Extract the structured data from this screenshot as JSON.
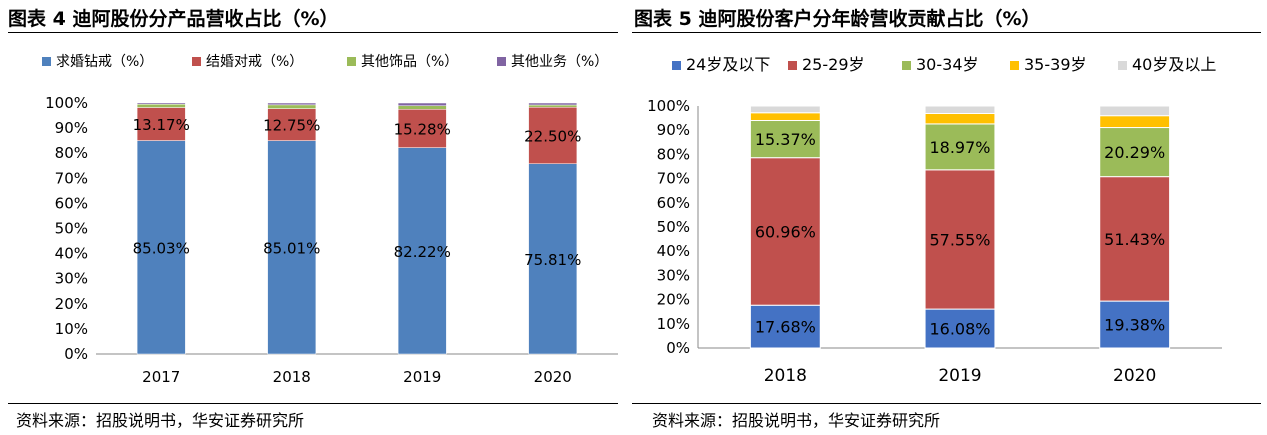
{
  "left": {
    "title": "图表 4 迪阿股份分产品营收占比（%）",
    "source": "资料来源：招股说明书，华安证券研究所"
  },
  "right": {
    "title": "图表 5 迪阿股份客户分年龄营收贡献占比（%）",
    "source": "资料来源：招股说明书，华安证券研究所"
  },
  "chart_data": [
    {
      "type": "bar",
      "stacked": true,
      "categories": [
        "2017",
        "2018",
        "2019",
        "2020"
      ],
      "ylim": [
        0,
        100
      ],
      "yticks": [
        "0%",
        "10%",
        "20%",
        "30%",
        "40%",
        "50%",
        "60%",
        "70%",
        "80%",
        "90%",
        "100%"
      ],
      "legend_position": "top",
      "series": [
        {
          "name": "求婚钻戒（%）",
          "color": "#4f81bd",
          "values": [
            85.03,
            85.01,
            82.22,
            75.81
          ],
          "labels": [
            "85.03%",
            "85.01%",
            "82.22%",
            "75.81%"
          ]
        },
        {
          "name": "结婚对戒（%）",
          "color": "#c0504d",
          "values": [
            13.17,
            12.75,
            15.28,
            22.5
          ],
          "labels": [
            "13.17%",
            "12.75%",
            "15.28%",
            "22.50%"
          ]
        },
        {
          "name": "其他饰品（%）",
          "color": "#9bbb59",
          "values": [
            1.3,
            1.5,
            1.4,
            0.9
          ],
          "labels": []
        },
        {
          "name": "其他业务（%）",
          "color": "#8064a2",
          "values": [
            0.5,
            0.74,
            1.1,
            0.79
          ],
          "labels": []
        }
      ]
    },
    {
      "type": "bar",
      "stacked": true,
      "categories": [
        "2018",
        "2019",
        "2020"
      ],
      "ylim": [
        0,
        100
      ],
      "yticks": [
        "0%",
        "10%",
        "20%",
        "30%",
        "40%",
        "50%",
        "60%",
        "70%",
        "80%",
        "90%",
        "100%"
      ],
      "legend_position": "top",
      "series": [
        {
          "name": "24岁及以下",
          "color": "#4472c4",
          "values": [
            17.68,
            16.08,
            19.38
          ],
          "labels": [
            "17.68%",
            "16.08%",
            "19.38%"
          ]
        },
        {
          "name": "25-29岁",
          "color": "#c0504d",
          "values": [
            60.96,
            57.55,
            51.43
          ],
          "labels": [
            "60.96%",
            "57.55%",
            "51.43%"
          ]
        },
        {
          "name": "30-34岁",
          "color": "#9bbb59",
          "values": [
            15.37,
            18.97,
            20.29
          ],
          "labels": [
            "15.37%",
            "18.97%",
            "20.29%"
          ]
        },
        {
          "name": "35-39岁",
          "color": "#ffc000",
          "values": [
            3.2,
            4.3,
            4.9
          ],
          "labels": []
        },
        {
          "name": "40岁及以上",
          "color": "#d9d9d9",
          "values": [
            2.79,
            3.1,
            4.0
          ],
          "labels": []
        }
      ]
    }
  ]
}
